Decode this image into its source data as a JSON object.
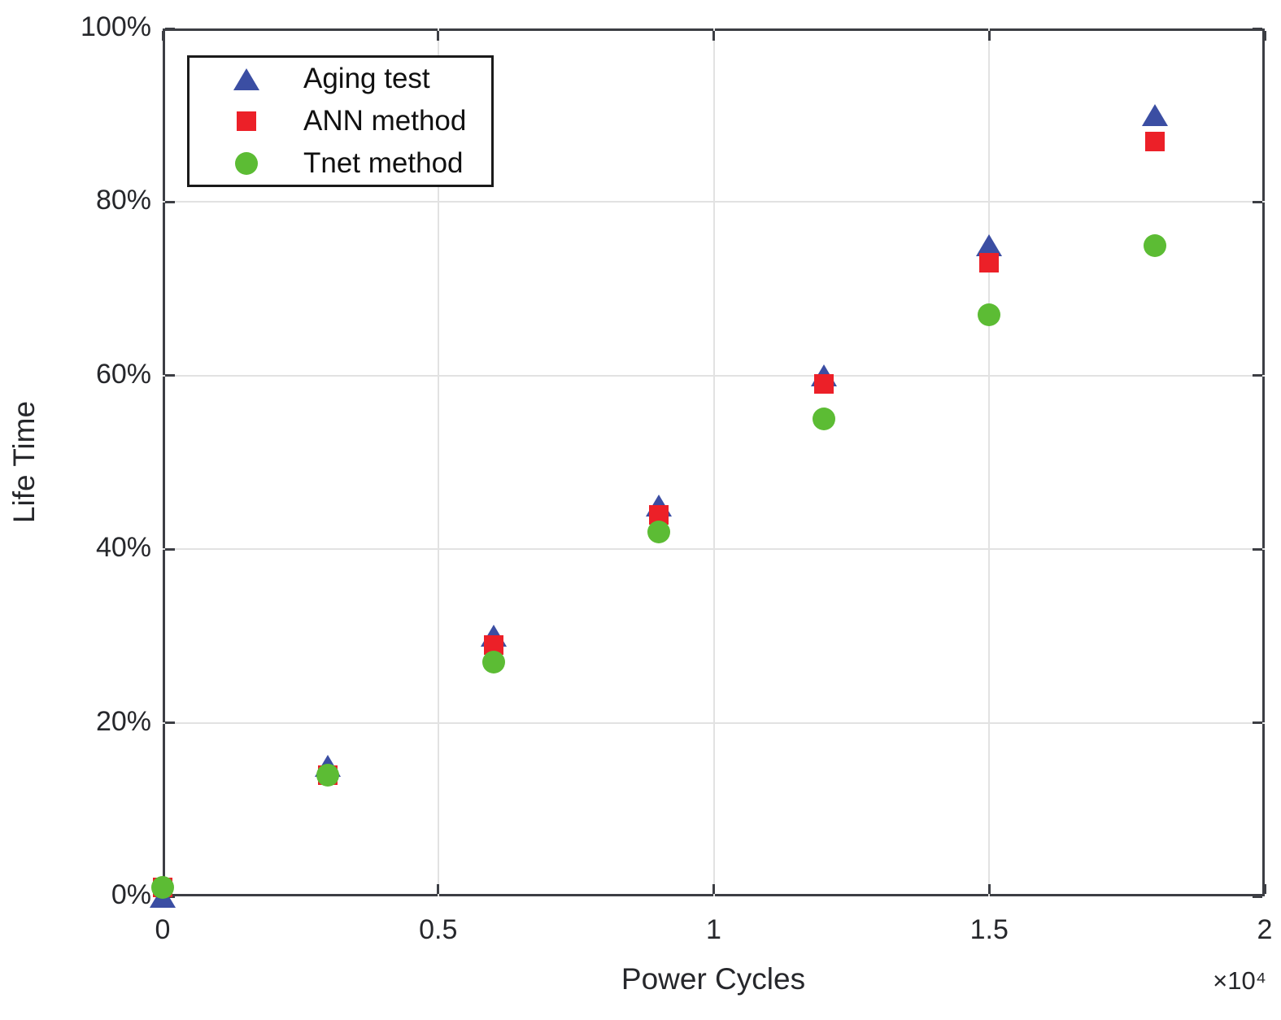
{
  "chart_data": {
    "type": "scatter",
    "title": "",
    "xlabel": "Power Cycles",
    "ylabel": "Life Time",
    "x_axis_exponent": "×10⁴",
    "xlim_cycles": [
      0,
      20000
    ],
    "ylim_percent": [
      0,
      100
    ],
    "grid": true,
    "x_ticks": [
      {
        "value": 0,
        "label": "0"
      },
      {
        "value": 5000,
        "label": "0.5"
      },
      {
        "value": 10000,
        "label": "1"
      },
      {
        "value": 15000,
        "label": "1.5"
      },
      {
        "value": 20000,
        "label": "2"
      }
    ],
    "y_ticks": [
      {
        "value": 0,
        "label": "0%"
      },
      {
        "value": 20,
        "label": "20%"
      },
      {
        "value": 40,
        "label": "40%"
      },
      {
        "value": 60,
        "label": "60%"
      },
      {
        "value": 80,
        "label": "80%"
      },
      {
        "value": 100,
        "label": "100%"
      }
    ],
    "x_values_cycles": [
      0,
      3000,
      6000,
      9000,
      12000,
      15000,
      18000
    ],
    "series": [
      {
        "name": "Aging test",
        "marker": "triangle",
        "color": "#3B4EA3",
        "lifetime_percent": [
          0,
          15,
          30,
          45,
          60,
          75,
          90
        ]
      },
      {
        "name": "ANN method",
        "marker": "square",
        "color": "#EC2028",
        "lifetime_percent": [
          1,
          14,
          29,
          44,
          59,
          73,
          87
        ]
      },
      {
        "name": "Tnet method",
        "marker": "circle",
        "color": "#5CBC34",
        "lifetime_percent": [
          1,
          14,
          27,
          42,
          55,
          67,
          75
        ]
      }
    ],
    "legend": {
      "position": "top-left",
      "entries": [
        "Aging test",
        "ANN method",
        "Tnet method"
      ]
    }
  },
  "style": {
    "background": "#FFFFFF",
    "axis_color": "#3C3E44",
    "grid_color": "#E2E2E2",
    "tick_label_color": "#26272B",
    "legend_border_color": "#1A1A1A"
  }
}
